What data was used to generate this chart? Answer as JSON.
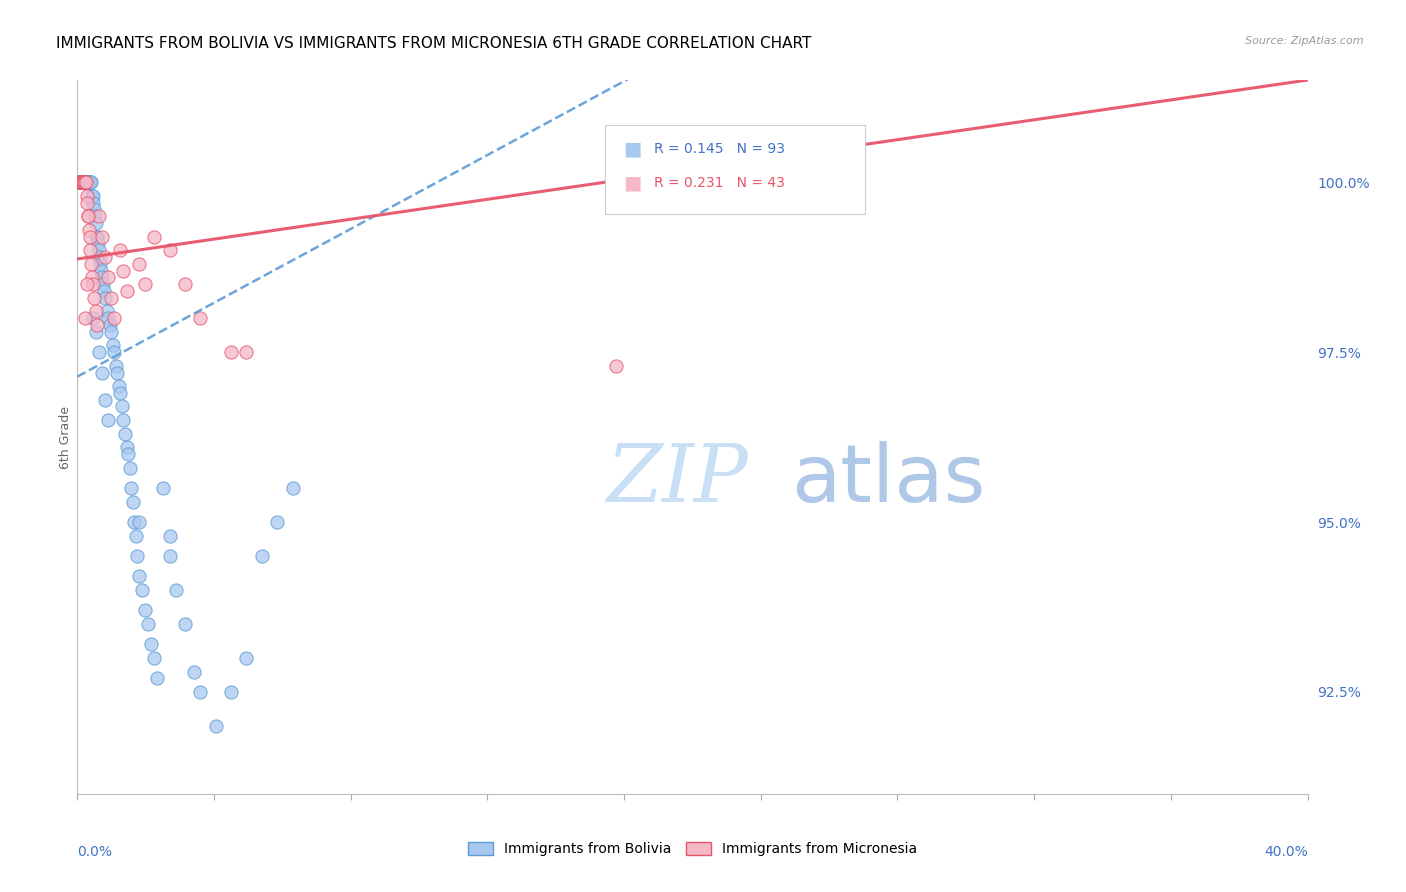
{
  "title": "IMMIGRANTS FROM BOLIVIA VS IMMIGRANTS FROM MICRONESIA 6TH GRADE CORRELATION CHART",
  "source": "Source: ZipAtlas.com",
  "ylabel": "6th Grade",
  "ylabel_ticks": [
    91.0,
    92.5,
    95.0,
    97.5,
    100.0
  ],
  "ylabel_labels": [
    "",
    "92.5%",
    "95.0%",
    "97.5%",
    "100.0%"
  ],
  "xmin": 0.0,
  "xmax": 40.0,
  "ymin": 91.0,
  "ymax": 101.5,
  "bolivia_color": "#a8c8f0",
  "micronesia_color": "#f5b8c8",
  "bolivia_line_color": "#5b9bd5",
  "micronesia_line_color": "#e8546a",
  "legend_R_bolivia": "R = 0.145",
  "legend_N_bolivia": "N = 93",
  "legend_R_micronesia": "R = 0.231",
  "legend_N_micronesia": "N = 43",
  "bolivia_x": [
    0.05,
    0.07,
    0.08,
    0.1,
    0.1,
    0.12,
    0.13,
    0.15,
    0.15,
    0.17,
    0.18,
    0.2,
    0.2,
    0.22,
    0.23,
    0.25,
    0.27,
    0.28,
    0.3,
    0.3,
    0.32,
    0.35,
    0.37,
    0.38,
    0.4,
    0.4,
    0.42,
    0.45,
    0.47,
    0.5,
    0.52,
    0.55,
    0.57,
    0.6,
    0.63,
    0.65,
    0.68,
    0.7,
    0.72,
    0.75,
    0.78,
    0.8,
    0.85,
    0.88,
    0.9,
    0.95,
    1.0,
    1.05,
    1.1,
    1.15,
    1.2,
    1.25,
    1.3,
    1.35,
    1.4,
    1.45,
    1.5,
    1.55,
    1.6,
    1.65,
    1.7,
    1.75,
    1.8,
    1.85,
    1.9,
    1.95,
    2.0,
    2.1,
    2.2,
    2.3,
    2.4,
    2.5,
    2.6,
    2.8,
    3.0,
    3.2,
    3.5,
    3.8,
    4.0,
    4.5,
    5.0,
    5.5,
    6.0,
    6.5,
    7.0,
    0.5,
    0.6,
    0.7,
    0.8,
    0.9,
    1.0,
    2.0,
    3.0
  ],
  "bolivia_y": [
    100.0,
    100.0,
    100.0,
    100.0,
    100.0,
    100.0,
    100.0,
    100.0,
    100.0,
    100.0,
    100.0,
    100.0,
    100.0,
    100.0,
    100.0,
    100.0,
    100.0,
    100.0,
    100.0,
    100.0,
    100.0,
    100.0,
    100.0,
    100.0,
    100.0,
    100.0,
    100.0,
    100.0,
    99.8,
    99.8,
    99.7,
    99.6,
    99.5,
    99.4,
    99.2,
    99.2,
    99.1,
    99.0,
    98.9,
    98.8,
    98.7,
    98.6,
    98.5,
    98.4,
    98.3,
    98.1,
    98.0,
    97.9,
    97.8,
    97.6,
    97.5,
    97.3,
    97.2,
    97.0,
    96.9,
    96.7,
    96.5,
    96.3,
    96.1,
    96.0,
    95.8,
    95.5,
    95.3,
    95.0,
    94.8,
    94.5,
    94.2,
    94.0,
    93.7,
    93.5,
    93.2,
    93.0,
    92.7,
    95.5,
    94.8,
    94.0,
    93.5,
    92.8,
    92.5,
    92.0,
    92.5,
    93.0,
    94.5,
    95.0,
    95.5,
    98.0,
    97.8,
    97.5,
    97.2,
    96.8,
    96.5,
    95.0,
    94.5
  ],
  "micronesia_x": [
    0.05,
    0.08,
    0.1,
    0.12,
    0.15,
    0.18,
    0.2,
    0.22,
    0.25,
    0.28,
    0.3,
    0.32,
    0.35,
    0.38,
    0.4,
    0.42,
    0.45,
    0.48,
    0.5,
    0.55,
    0.6,
    0.65,
    0.7,
    0.8,
    0.9,
    1.0,
    1.1,
    1.2,
    1.4,
    1.5,
    1.6,
    2.0,
    2.2,
    2.5,
    3.0,
    3.5,
    4.0,
    5.0,
    0.25,
    0.3,
    0.35,
    17.5,
    5.5
  ],
  "micronesia_y": [
    100.0,
    100.0,
    100.0,
    100.0,
    100.0,
    100.0,
    100.0,
    100.0,
    100.0,
    100.0,
    99.8,
    99.7,
    99.5,
    99.3,
    99.2,
    99.0,
    98.8,
    98.6,
    98.5,
    98.3,
    98.1,
    97.9,
    99.5,
    99.2,
    98.9,
    98.6,
    98.3,
    98.0,
    99.0,
    98.7,
    98.4,
    98.8,
    98.5,
    99.2,
    99.0,
    98.5,
    98.0,
    97.5,
    98.0,
    98.5,
    99.5,
    97.3,
    97.5
  ],
  "watermark_zip": "ZIP",
  "watermark_atlas": "atlas",
  "background_color": "#ffffff",
  "grid_color": "#e0e0e0",
  "axis_label_color": "#4472c4",
  "title_color": "#000000",
  "title_fontsize": 11,
  "watermark_color": "#c8dff5",
  "watermark_color2": "#b0c8e8"
}
